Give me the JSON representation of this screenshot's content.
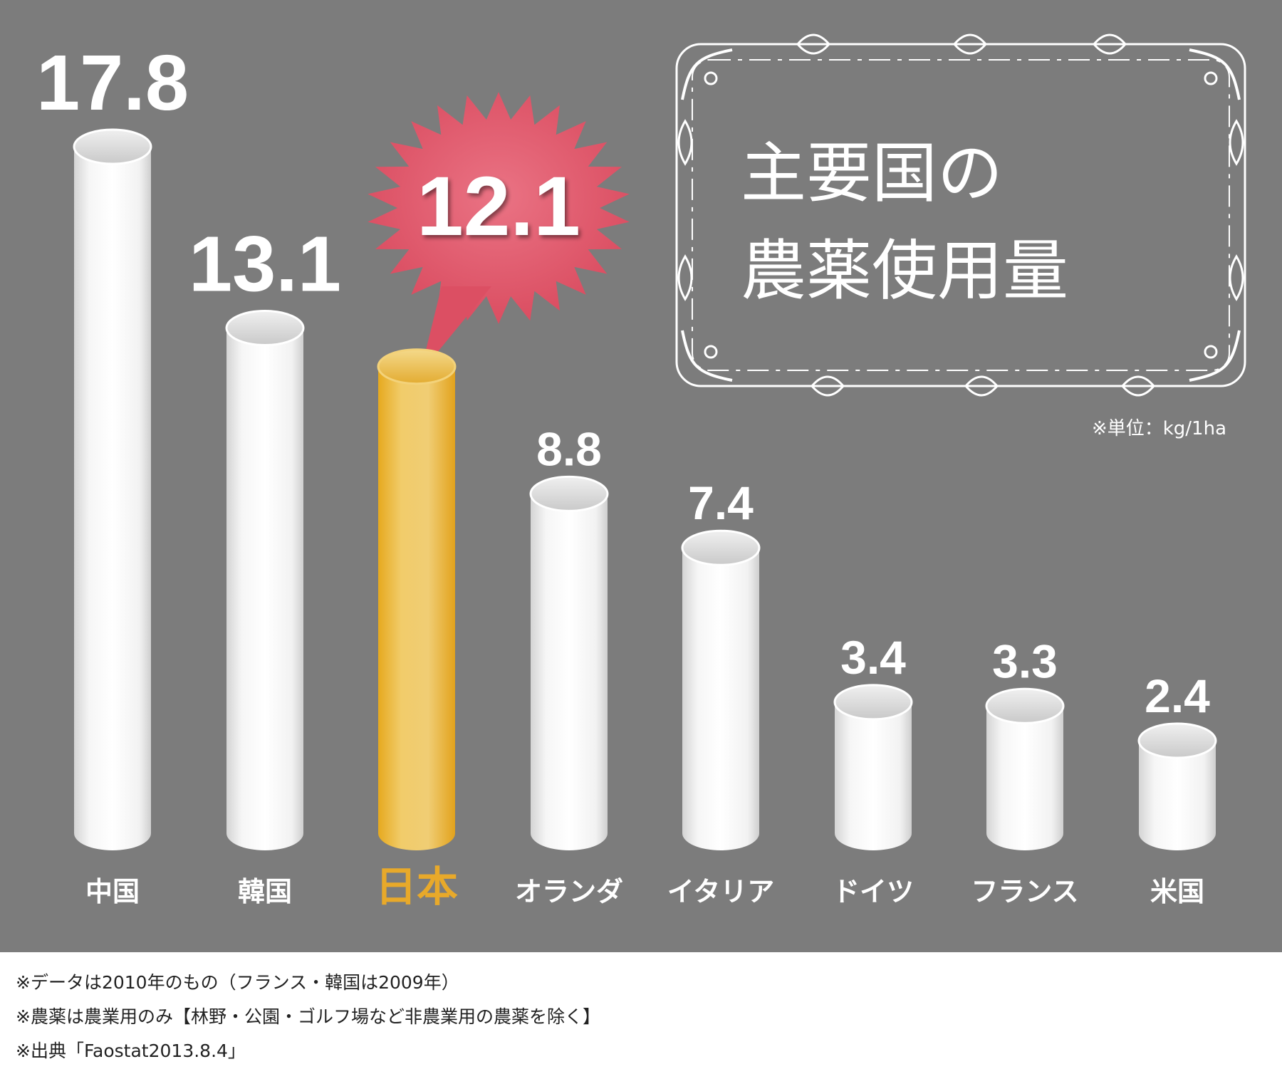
{
  "chart_data": {
    "type": "bar",
    "title": "主要国の農薬使用量",
    "title_lines": [
      "主要国の",
      "農薬使用量"
    ],
    "unit_note": "※単位：kg/1ha",
    "categories": [
      "中国",
      "韓国",
      "日本",
      "オランダ",
      "イタリア",
      "ドイツ",
      "フランス",
      "米国"
    ],
    "values": [
      17.8,
      13.1,
      12.1,
      8.8,
      7.4,
      3.4,
      3.3,
      2.4
    ],
    "value_labels": [
      "17.8",
      "13.1",
      "12.1",
      "8.8",
      "7.4",
      "3.4",
      "3.3",
      "2.4"
    ],
    "highlight_category": "日本",
    "ylim": [
      0,
      17.8
    ],
    "grid": false,
    "xlabel": "",
    "ylabel": ""
  },
  "colors": {
    "background": "#7c7c7c",
    "bar": "#ffffff",
    "highlight_bar": "#e8b43a",
    "highlight_label": "#e8a92a",
    "burst": "#e0566a",
    "frame": "#ffffff"
  },
  "footnotes": [
    "※データは2010年のもの（フランス・韓国は2009年）",
    "※農薬は農業用のみ【林野・公園・ゴルフ場など非農業用の農薬を除く】",
    "※出典「Faostat2013.8.4」"
  ]
}
